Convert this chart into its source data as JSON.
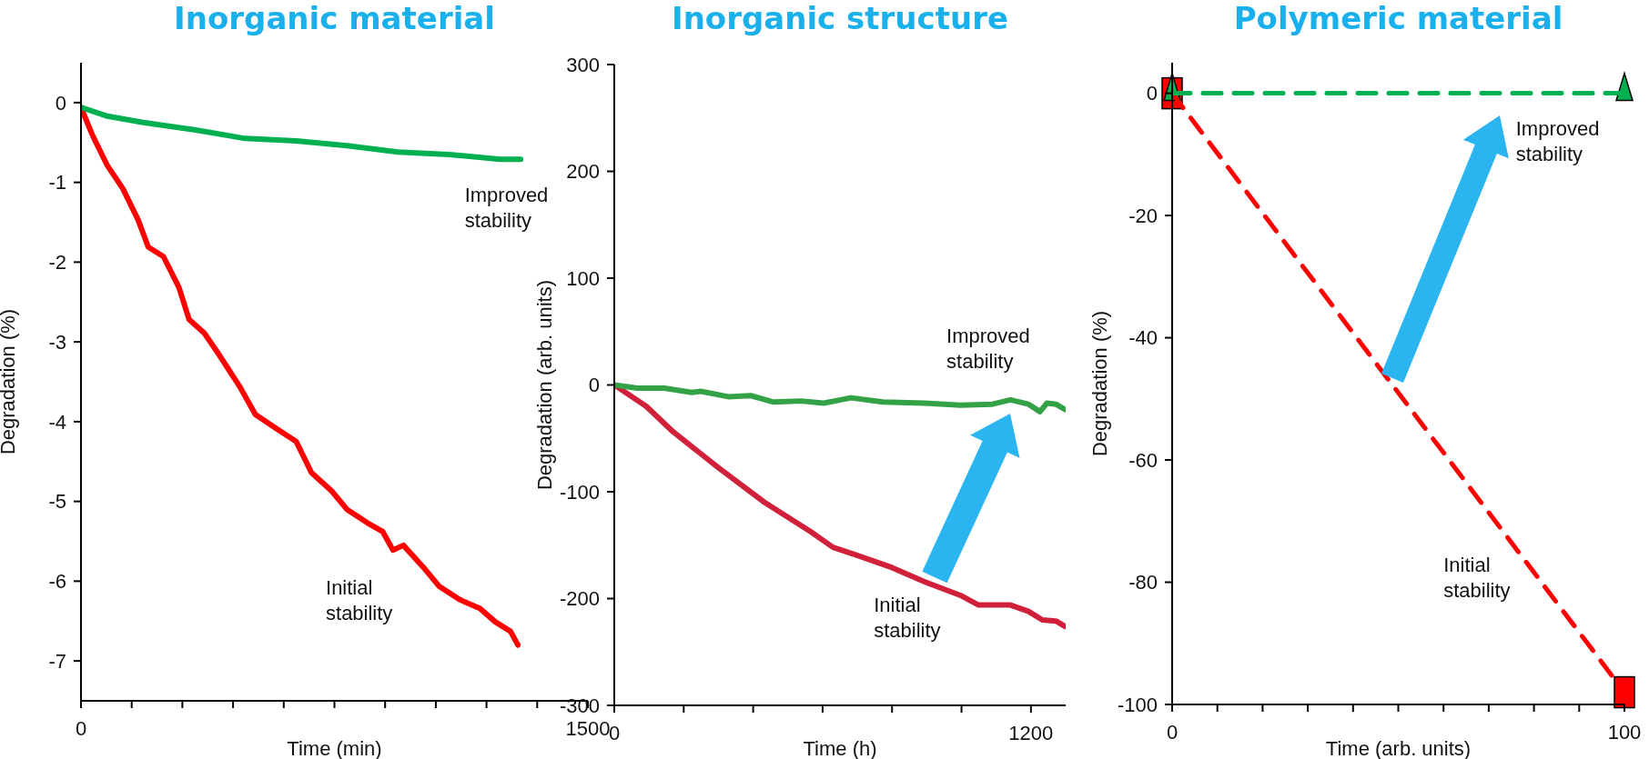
{
  "chart_data": [
    {
      "type": "line",
      "title": "Inorganic material",
      "xlabel": "Time (min)",
      "ylabel": "Degradation (%)",
      "xlim": [
        0,
        1500
      ],
      "ylim": [
        -7.5,
        0.5
      ],
      "xticks": [
        0,
        {
          "value": 150,
          "label": null
        },
        {
          "value": 300,
          "label": null
        },
        {
          "value": 450,
          "label": null
        },
        {
          "value": 600,
          "label": null
        },
        {
          "value": 750,
          "label": null
        },
        {
          "value": 900,
          "label": null
        },
        {
          "value": 1050,
          "label": null
        },
        {
          "value": 1200,
          "label": null
        },
        {
          "value": 1350,
          "label": null
        },
        1500
      ],
      "yticks": [
        -7,
        -6,
        -5,
        -4,
        -3,
        -2,
        -1,
        0
      ],
      "grid": false,
      "series": [
        {
          "color": "#ff0000",
          "x": [
            0,
            33,
            78,
            124,
            169,
            199,
            244,
            290,
            320,
            365,
            410,
            471,
            516,
            576,
            637,
            682,
            742,
            787,
            848,
            893,
            923,
            954,
            1014,
            1059,
            1120,
            1180,
            1226,
            1271,
            1293
          ],
          "values": [
            -0.06,
            -0.4,
            -0.79,
            -1.08,
            -1.47,
            -1.81,
            -1.93,
            -2.32,
            -2.72,
            -2.89,
            -3.17,
            -3.57,
            -3.91,
            -4.08,
            -4.25,
            -4.64,
            -4.87,
            -5.1,
            -5.27,
            -5.38,
            -5.61,
            -5.55,
            -5.83,
            -6.06,
            -6.23,
            -6.34,
            -6.51,
            -6.63,
            -6.8
          ]
        },
        {
          "color": "#00b050",
          "x": [
            0,
            78,
            184,
            335,
            486,
            637,
            787,
            938,
            1089,
            1240,
            1301
          ],
          "values": [
            -0.06,
            -0.17,
            -0.25,
            -0.34,
            -0.45,
            -0.48,
            -0.54,
            -0.62,
            -0.65,
            -0.71,
            -0.71
          ]
        }
      ],
      "annotations": [
        "Improved stability",
        "Initial stability"
      ]
    },
    {
      "type": "line",
      "title": "Inorganic structure",
      "xlabel": "Time (h)",
      "ylabel": "Degradation (arb. units)",
      "xlim": [
        0,
        1300
      ],
      "ylim": [
        -300,
        300
      ],
      "xticks": [
        0,
        {
          "value": 200,
          "label": null
        },
        {
          "value": 400,
          "label": null
        },
        {
          "value": 600,
          "label": null
        },
        {
          "value": 800,
          "label": null
        },
        {
          "value": 1000,
          "label": null
        },
        1200
      ],
      "yticks": [
        -300,
        -200,
        -100,
        0,
        100,
        200,
        300
      ],
      "grid": false,
      "series": [
        {
          "color": "#d0203a",
          "x": [
            0,
            92,
            170,
            302,
            433,
            564,
            630,
            695,
            800,
            892,
            997,
            1049,
            1141,
            1193,
            1233,
            1272,
            1298
          ],
          "values": [
            0,
            -20,
            -44,
            -78,
            -110,
            -137,
            -152,
            -159,
            -171,
            -184,
            -197,
            -206,
            -206,
            -212,
            -220,
            -221,
            -226
          ]
        },
        {
          "color": "#33a146",
          "x": [
            0,
            66,
            144,
            223,
            249,
            328,
            393,
            459,
            538,
            603,
            682,
            774,
            892,
            997,
            1089,
            1141,
            1193,
            1226,
            1246,
            1272,
            1298
          ],
          "values": [
            0,
            -3,
            -3,
            -7,
            -6,
            -11,
            -10,
            -16,
            -15,
            -17,
            -12,
            -16,
            -17,
            -19,
            -18,
            -14,
            -18,
            -25,
            -17,
            -18,
            -23
          ]
        }
      ],
      "annotations": [
        "Improved stability",
        "Initial stability"
      ]
    },
    {
      "type": "line",
      "title": "Polymeric material",
      "xlabel": "Time (arb. units)",
      "ylabel": "Degradation (%)",
      "xlim": [
        0,
        100
      ],
      "ylim": [
        -100,
        5
      ],
      "xticks": [
        0,
        {
          "value": 10,
          "label": null
        },
        {
          "value": 20,
          "label": null
        },
        {
          "value": 30,
          "label": null
        },
        {
          "value": 40,
          "label": null
        },
        {
          "value": 50,
          "label": null
        },
        {
          "value": 60,
          "label": null
        },
        {
          "value": 70,
          "label": null
        },
        {
          "value": 80,
          "label": null
        },
        {
          "value": 90,
          "label": null
        },
        100
      ],
      "yticks": [
        -100,
        -80,
        -60,
        -40,
        -20,
        0
      ],
      "grid": false,
      "line_style": "dashed",
      "series": [
        {
          "color": "#ff0000",
          "marker": "square",
          "x": [
            0,
            100
          ],
          "values": [
            0,
            -98
          ]
        },
        {
          "color": "#00b050",
          "marker": "triangle",
          "x": [
            0,
            100
          ],
          "values": [
            0,
            0
          ]
        }
      ],
      "annotations": [
        "Improved stability",
        "Initial stability"
      ]
    }
  ]
}
